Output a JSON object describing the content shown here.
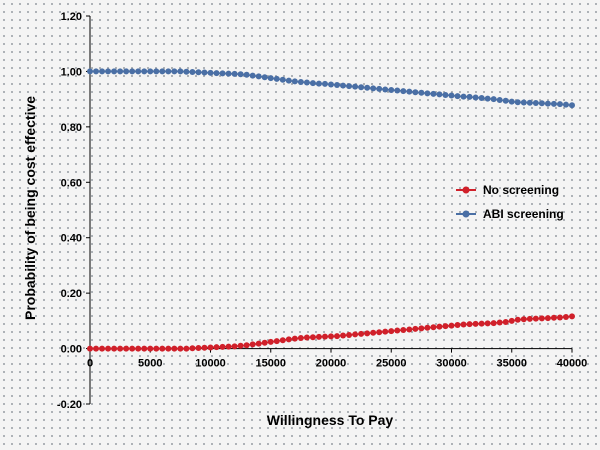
{
  "chart_data": {
    "type": "line",
    "title": "",
    "xlabel": "Willingness To Pay",
    "ylabel": "Probability  of being cost effective",
    "xlim": [
      0,
      40000
    ],
    "ylim": [
      -0.2,
      1.2
    ],
    "x_ticks": [
      "0",
      "5000",
      "10000",
      "15000",
      "20000",
      "25000",
      "30000",
      "35000",
      "40000"
    ],
    "y_ticks": [
      "-0.20",
      "0.00",
      "0.20",
      "0.40",
      "0.60",
      "0.80",
      "1.00",
      "1.20"
    ],
    "grid": false,
    "legend_position": "right",
    "x": [
      0,
      500,
      1000,
      1500,
      2000,
      2500,
      3000,
      3500,
      4000,
      4500,
      5000,
      5500,
      6000,
      6500,
      7000,
      7500,
      8000,
      8500,
      9000,
      9500,
      10000,
      10500,
      11000,
      11500,
      12000,
      12500,
      13000,
      13500,
      14000,
      14500,
      15000,
      15500,
      16000,
      16500,
      17000,
      17500,
      18000,
      18500,
      19000,
      19500,
      20000,
      20500,
      21000,
      21500,
      22000,
      22500,
      23000,
      23500,
      24000,
      24500,
      25000,
      25500,
      26000,
      26500,
      27000,
      27500,
      28000,
      28500,
      29000,
      29500,
      30000,
      30500,
      31000,
      31500,
      32000,
      32500,
      33000,
      33500,
      34000,
      34500,
      35000,
      35500,
      36000,
      36500,
      37000,
      37500,
      38000,
      38500,
      39000,
      39500,
      40000
    ],
    "series": [
      {
        "name": "No screening",
        "color": "#d0202a",
        "values": [
          0,
          0,
          0,
          0,
          0,
          0,
          0,
          0,
          0,
          0,
          0,
          0,
          0,
          0,
          0,
          0,
          0,
          0.001,
          0.002,
          0.003,
          0.004,
          0.005,
          0.006,
          0.007,
          0.008,
          0.01,
          0.012,
          0.015,
          0.018,
          0.021,
          0.024,
          0.027,
          0.03,
          0.033,
          0.036,
          0.038,
          0.04,
          0.041,
          0.042,
          0.043,
          0.044,
          0.045,
          0.047,
          0.049,
          0.051,
          0.053,
          0.055,
          0.057,
          0.059,
          0.061,
          0.063,
          0.065,
          0.067,
          0.069,
          0.071,
          0.073,
          0.075,
          0.077,
          0.079,
          0.081,
          0.083,
          0.085,
          0.087,
          0.088,
          0.089,
          0.09,
          0.091,
          0.092,
          0.094,
          0.096,
          0.1,
          0.104,
          0.106,
          0.107,
          0.108,
          0.109,
          0.11,
          0.111,
          0.112,
          0.114,
          0.116
        ]
      },
      {
        "name": "ABI screening",
        "color": "#4a6fa5",
        "values": [
          1.0,
          1.0,
          1.0,
          1.0,
          1.0,
          1.0,
          1.0,
          1.0,
          1.0,
          1.0,
          1.0,
          1.0,
          1.0,
          1.0,
          1.0,
          1.0,
          0.999,
          0.998,
          0.997,
          0.996,
          0.995,
          0.994,
          0.993,
          0.992,
          0.991,
          0.99,
          0.988,
          0.985,
          0.982,
          0.979,
          0.976,
          0.973,
          0.97,
          0.967,
          0.964,
          0.962,
          0.96,
          0.958,
          0.956,
          0.955,
          0.953,
          0.951,
          0.949,
          0.947,
          0.945,
          0.943,
          0.941,
          0.939,
          0.937,
          0.935,
          0.933,
          0.931,
          0.929,
          0.927,
          0.925,
          0.923,
          0.921,
          0.919,
          0.917,
          0.915,
          0.913,
          0.911,
          0.909,
          0.908,
          0.906,
          0.904,
          0.902,
          0.9,
          0.897,
          0.894,
          0.891,
          0.889,
          0.888,
          0.887,
          0.886,
          0.885,
          0.884,
          0.883,
          0.882,
          0.88,
          0.878
        ]
      }
    ]
  }
}
